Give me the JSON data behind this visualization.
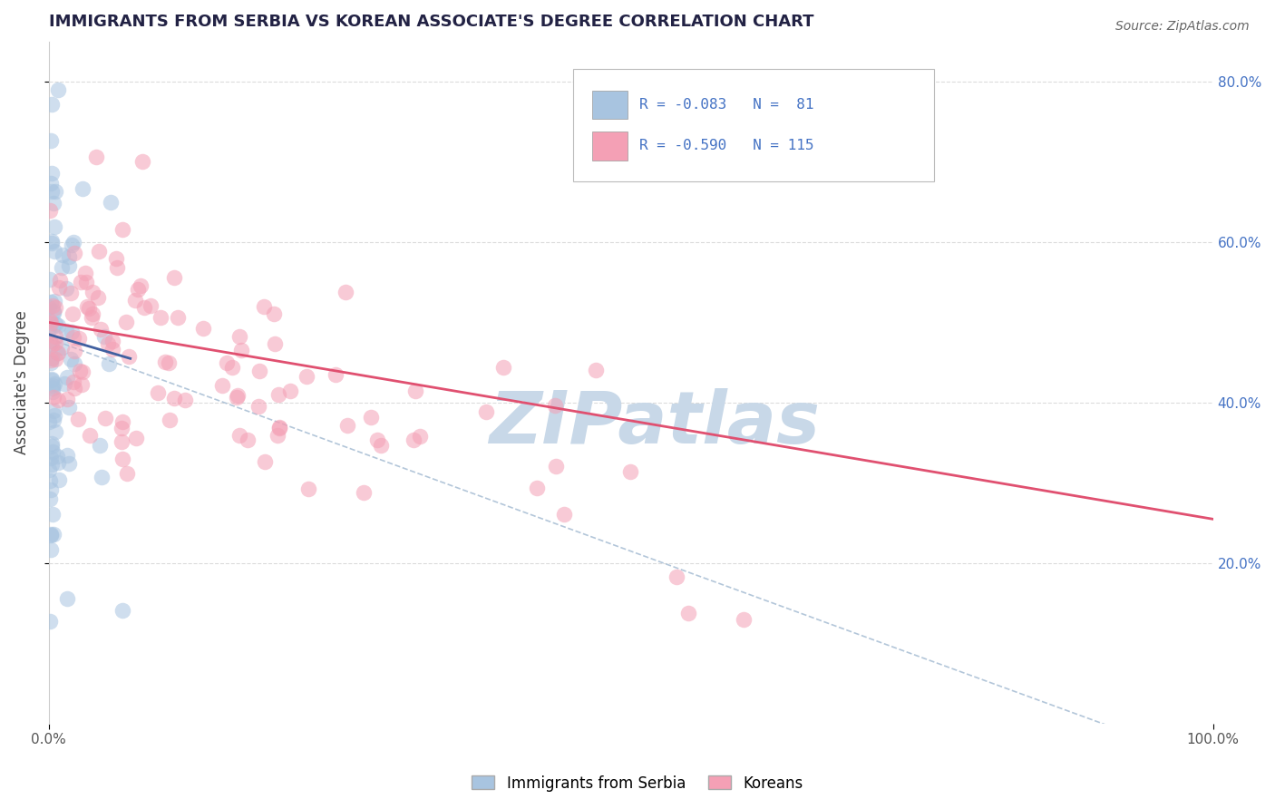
{
  "title": "IMMIGRANTS FROM SERBIA VS KOREAN ASSOCIATE'S DEGREE CORRELATION CHART",
  "source": "Source: ZipAtlas.com",
  "ylabel": "Associate's Degree",
  "legend_label1": "Immigrants from Serbia",
  "legend_label2": "Koreans",
  "r1": -0.083,
  "n1": 81,
  "r2": -0.59,
  "n2": 115,
  "color_blue": "#a8c4e0",
  "color_pink": "#f4a0b5",
  "color_blue_dark": "#4060a0",
  "color_pink_dark": "#e05070",
  "color_blue_text": "#4472c4",
  "watermark": "ZIPatlas",
  "watermark_color": "#c8d8e8",
  "xlim": [
    0.0,
    1.0
  ],
  "ylim": [
    0.0,
    0.85
  ],
  "background_color": "#ffffff",
  "grid_color": "#cccccc",
  "blue_trendline": [
    0.0,
    0.07,
    0.485,
    0.455
  ],
  "pink_trendline": [
    0.0,
    1.0,
    0.5,
    0.255
  ],
  "dashed_line": [
    0.0,
    1.0,
    0.48,
    -0.05
  ]
}
